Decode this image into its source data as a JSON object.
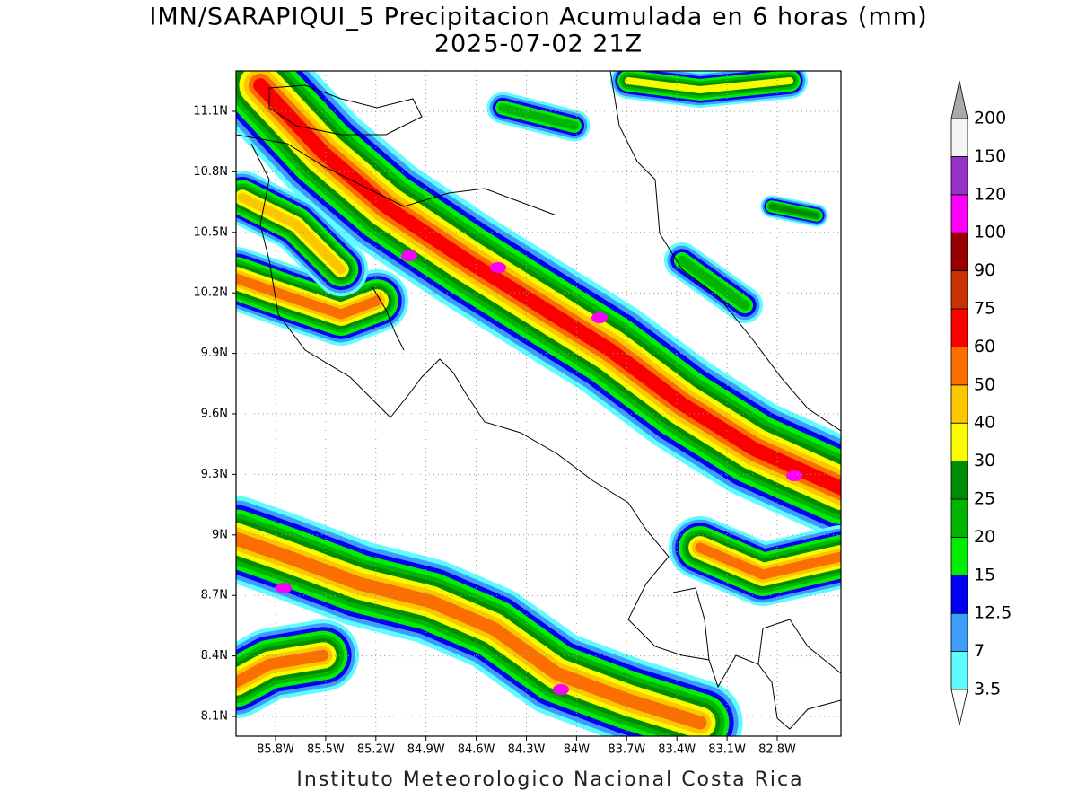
{
  "title": "IMN/SARAPIQUI_5 Precipitacion Acumulada en 6 horas (mm)",
  "subtitle": "2025-07-02 21Z",
  "footer": "Instituto Meteorologico Nacional Costa Rica",
  "map": {
    "lat_labels": [
      "11.1N",
      "10.8N",
      "10.5N",
      "10.2N",
      "9.9N",
      "9.6N",
      "9.3N",
      "9N",
      "8.7N",
      "8.4N",
      "8.1N"
    ],
    "lon_labels": [
      "85.8W",
      "85.5W",
      "85.2W",
      "84.9W",
      "84.6W",
      "84.3W",
      "84W",
      "83.7W",
      "83.4W",
      "83.1W",
      "82.8W"
    ]
  },
  "colorbar": {
    "levels": [
      3.5,
      7,
      12.5,
      15,
      20,
      25,
      30,
      40,
      50,
      60,
      75,
      90,
      100,
      120,
      150,
      200
    ],
    "colors": [
      "#60fbff",
      "#3c9dfb",
      "#0000f5",
      "#00ee00",
      "#00b400",
      "#008c00",
      "#fbfb00",
      "#fbc800",
      "#fb6e00",
      "#fb0000",
      "#c83200",
      "#960000",
      "#fb00fb",
      "#9632c8",
      "#f5f5f5"
    ],
    "below_color": "#ffffff",
    "above_color": "#aaaaaa"
  }
}
